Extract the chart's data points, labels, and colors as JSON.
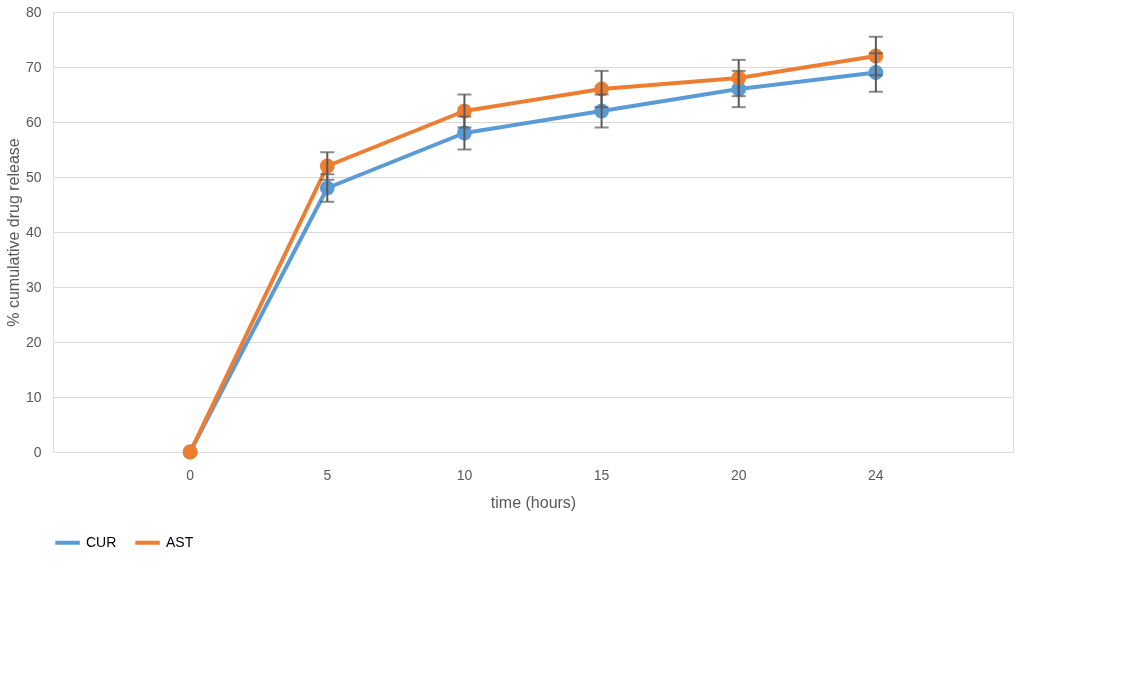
{
  "chart_data": {
    "type": "line",
    "xlabel": "time (hours)",
    "ylabel": "% cumulative drug release",
    "categories": [
      "0",
      "5",
      "10",
      "15",
      "20",
      "24"
    ],
    "series": [
      {
        "name": "CUR",
        "color": "#5b9bd5",
        "values": [
          0,
          48,
          58,
          62,
          66,
          69
        ],
        "errors": [
          null,
          2.5,
          3,
          3,
          3.3,
          3.5
        ]
      },
      {
        "name": "AST",
        "color": "#ed7d31",
        "values": [
          0,
          52,
          62,
          66,
          68,
          72
        ],
        "errors": [
          null,
          2.5,
          3,
          3.3,
          3.3,
          3.5
        ]
      }
    ],
    "ylim": [
      0,
      80
    ],
    "yticks": [
      0,
      10,
      20,
      30,
      40,
      50,
      60,
      70,
      80
    ],
    "grid": "y",
    "legend": "bottom",
    "marker": "circle",
    "line_style": "solid"
  }
}
